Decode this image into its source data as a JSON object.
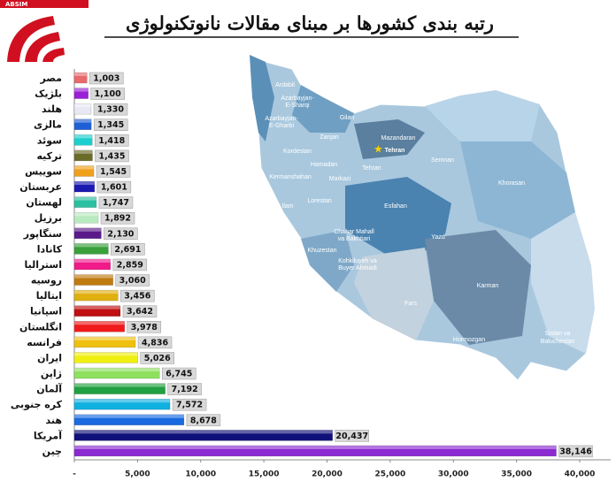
{
  "logo": "ABSIM",
  "chart_data": {
    "type": "bar",
    "orientation": "horizontal",
    "title": "رتبه بندی کشورها بر مبنای مقالات نانوتکنولوژی",
    "categories": [
      "مصر",
      "بلژیک",
      "هلند",
      "مالزی",
      "سوئد",
      "ترکیه",
      "سوییس",
      "عربستان",
      "لهستان",
      "برزیل",
      "سنگاپور",
      "کانادا",
      "استرالیا",
      "روسیه",
      "ایتالیا",
      "اسپانیا",
      "انگلستان",
      "فرانسه",
      "ایران",
      "ژاپن",
      "آلمان",
      "کره جنوبی",
      "هند",
      "آمریکا",
      "چین"
    ],
    "values": [
      1003,
      1100,
      1330,
      1345,
      1418,
      1435,
      1545,
      1601,
      1747,
      1892,
      2130,
      2691,
      2859,
      3060,
      3456,
      3642,
      3978,
      4836,
      5026,
      6745,
      7192,
      7572,
      8678,
      20437,
      38146
    ],
    "value_labels": [
      "1,003",
      "1,100",
      "1,330",
      "1,345",
      "1,418",
      "1,435",
      "1,545",
      "1,601",
      "1,747",
      "1,892",
      "2,130",
      "2,691",
      "2,859",
      "3,060",
      "3,456",
      "3,642",
      "3,978",
      "4,836",
      "5,026",
      "6,745",
      "7,192",
      "7,572",
      "8,678",
      "20,437",
      "38,146"
    ],
    "colors": [
      "#e86a6a",
      "#9b1fd6",
      "#e8e8f4",
      "#1f5fd6",
      "#1ccfcf",
      "#6b6b2a",
      "#f0a01a",
      "#1a1ab0",
      "#2ac0a0",
      "#b8ecc0",
      "#5a1a8a",
      "#3aa03a",
      "#f01a8a",
      "#c07a10",
      "#e0b010",
      "#c01010",
      "#f01a1a",
      "#f0c010",
      "#f0f010",
      "#90e060",
      "#20a040",
      "#10b0e0",
      "#1a6ae0",
      "#10107a",
      "#8a2ad0"
    ],
    "xlim": [
      0,
      40000
    ],
    "xticks": [
      {
        "value": 0,
        "label": "-"
      },
      {
        "value": 5000,
        "label": "5,000"
      },
      {
        "value": 10000,
        "label": "10,000"
      },
      {
        "value": 15000,
        "label": "15,000"
      },
      {
        "value": 20000,
        "label": "20,000"
      },
      {
        "value": 25000,
        "label": "25,000"
      },
      {
        "value": 30000,
        "label": "30,000"
      },
      {
        "value": 35000,
        "label": "35,000"
      },
      {
        "value": 40000,
        "label": "40,000"
      }
    ]
  },
  "map_labels": [
    [
      "Ardabil"
    ],
    [
      "Azarbayjan-",
      "E-Sharqi"
    ],
    [
      "Azarbayjan-",
      "E-Gharbi"
    ],
    [
      "Gilan"
    ],
    [
      "Zanjan"
    ],
    [
      "Mazandaran"
    ],
    [
      "Tehran"
    ],
    [
      "Kordestan"
    ],
    [
      "Hamadan"
    ],
    [
      "Tehran"
    ],
    [
      "Semnan"
    ],
    [
      "Kermanshahan"
    ],
    [
      "Markazi"
    ],
    [
      "Khorasan"
    ],
    [
      "Ilam"
    ],
    [
      "Lorestan"
    ],
    [
      "Esfahan"
    ],
    [
      "Chahar Mahall",
      "va Bakhtiari"
    ],
    [
      "Yazd"
    ],
    [
      "Khuzestan"
    ],
    [
      "Kohkiluyeh va",
      "Buyer Ahmadi"
    ],
    [
      "Fars"
    ],
    [
      "Karman"
    ],
    [
      "Hormozgan"
    ],
    [
      "Sistan va",
      "Baluchestan"
    ]
  ]
}
